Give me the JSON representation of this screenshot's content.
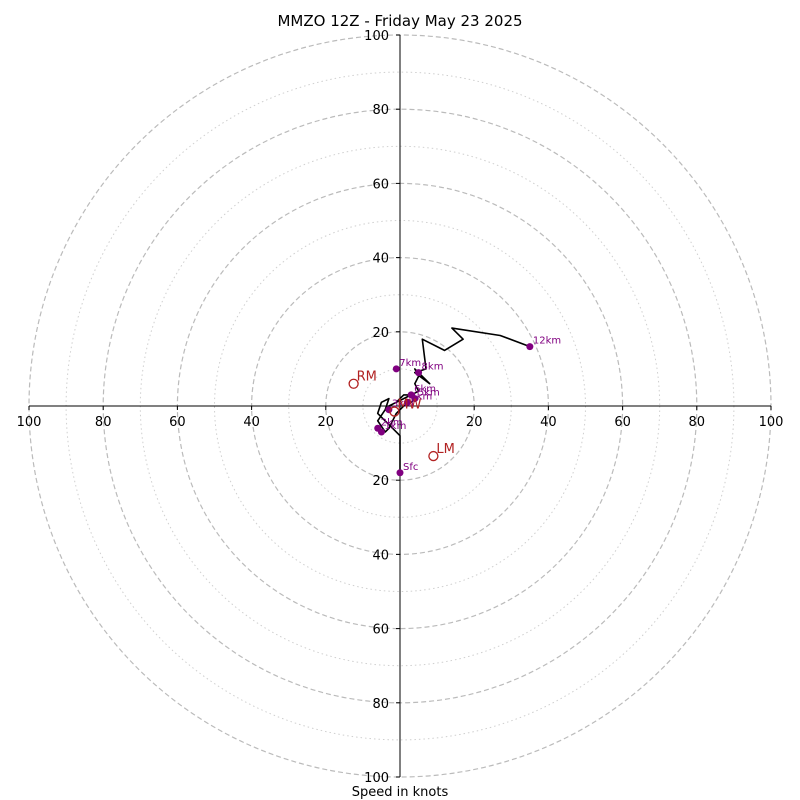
{
  "chart_data": {
    "type": "hodograph",
    "title": "MMZO 12Z - Friday May 23 2025",
    "xlabel": "Speed in knots",
    "ylabel": "",
    "range": [
      -100,
      100
    ],
    "ring_major": [
      20,
      40,
      60,
      80,
      100
    ],
    "ring_minor": [
      10,
      30,
      50,
      70,
      90
    ],
    "x_ticks": [
      {
        "value": -100,
        "label": "100"
      },
      {
        "value": -80,
        "label": "80"
      },
      {
        "value": -60,
        "label": "60"
      },
      {
        "value": -40,
        "label": "40"
      },
      {
        "value": -20,
        "label": "20"
      },
      {
        "value": 20,
        "label": "20"
      },
      {
        "value": 40,
        "label": "40"
      },
      {
        "value": 60,
        "label": "60"
      },
      {
        "value": 80,
        "label": "80"
      },
      {
        "value": 100,
        "label": "100"
      }
    ],
    "y_ticks": [
      {
        "value": 100,
        "label": "100"
      },
      {
        "value": 80,
        "label": "80"
      },
      {
        "value": 60,
        "label": "60"
      },
      {
        "value": 40,
        "label": "40"
      },
      {
        "value": 20,
        "label": "20"
      },
      {
        "value": -20,
        "label": "20"
      },
      {
        "value": -40,
        "label": "40"
      },
      {
        "value": -60,
        "label": "60"
      },
      {
        "value": -80,
        "label": "80"
      },
      {
        "value": -100,
        "label": "100"
      }
    ],
    "hodograph_trace": [
      [
        0,
        -18
      ],
      [
        0,
        -8
      ],
      [
        -3,
        -5
      ],
      [
        -6,
        -2
      ],
      [
        -5,
        1
      ],
      [
        -3,
        2
      ],
      [
        -4,
        -1
      ],
      [
        -6,
        -4
      ],
      [
        -4,
        -7
      ],
      [
        -3,
        -6
      ],
      [
        -1,
        -2
      ],
      [
        1,
        0
      ],
      [
        3,
        1
      ],
      [
        4,
        2
      ],
      [
        3,
        3
      ],
      [
        1,
        2
      ],
      [
        -1,
        1
      ],
      [
        -3,
        0
      ],
      [
        -1,
        1
      ],
      [
        0,
        2
      ],
      [
        1,
        3
      ],
      [
        3,
        3
      ],
      [
        5,
        4
      ],
      [
        4,
        6
      ],
      [
        5,
        8
      ],
      [
        4,
        10
      ],
      [
        6,
        8
      ],
      [
        8,
        6
      ],
      [
        4,
        9
      ],
      [
        7,
        10
      ],
      [
        6,
        18
      ],
      [
        12,
        15
      ],
      [
        17,
        18
      ],
      [
        14,
        21
      ],
      [
        27,
        19
      ],
      [
        35,
        16
      ]
    ],
    "height_points": [
      {
        "label": "Sfc",
        "u": 0,
        "v": -18
      },
      {
        "label": "1km",
        "u": -5,
        "v": -7
      },
      {
        "label": "2km",
        "u": -6,
        "v": -6
      },
      {
        "label": "3km",
        "u": -3,
        "v": -1
      },
      {
        "label": "4km",
        "u": 2,
        "v": 1
      },
      {
        "label": "5km",
        "u": 4,
        "v": 2
      },
      {
        "label": "6km",
        "u": 3,
        "v": 3
      },
      {
        "label": "7km",
        "u": -1,
        "v": 10
      },
      {
        "label": "8km",
        "u": 5,
        "v": 9
      },
      {
        "label": "12km",
        "u": 35,
        "v": 16
      }
    ],
    "storm_motion": [
      {
        "label": "RM",
        "u": -12.5,
        "v": 6
      },
      {
        "label": "LM",
        "u": 9,
        "v": -13.5
      },
      {
        "label": "MW",
        "u": -1.5,
        "v": -1.5
      }
    ],
    "colors": {
      "trace": "#000000",
      "height_points": "#800080",
      "storm_motion": "#b22222",
      "ring": "#bbbbbb",
      "axis": "#000000"
    }
  }
}
